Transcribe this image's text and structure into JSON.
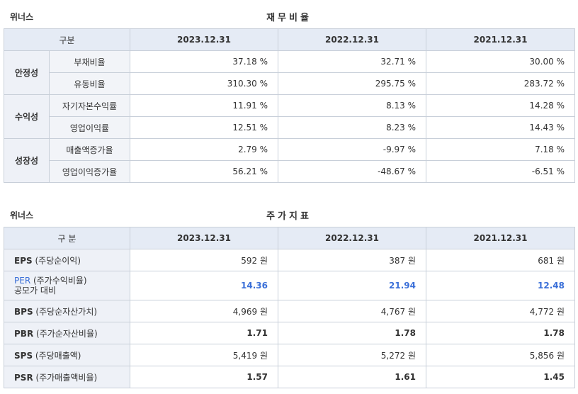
{
  "section1": {
    "company": "위너스",
    "title": "재무비율",
    "header": {
      "category": "구분",
      "years": [
        "2023.12.31",
        "2022.12.31",
        "2021.12.31"
      ]
    },
    "groups": [
      {
        "name": "안정성",
        "rows": [
          {
            "label": "부채비율",
            "values": [
              "37.18 %",
              "32.71 %",
              "30.00 %"
            ]
          },
          {
            "label": "유동비율",
            "values": [
              "310.30 %",
              "295.75 %",
              "283.72 %"
            ]
          }
        ]
      },
      {
        "name": "수익성",
        "rows": [
          {
            "label": "자기자본수익률",
            "values": [
              "11.91 %",
              "8.13 %",
              "14.28 %"
            ]
          },
          {
            "label": "영업이익률",
            "values": [
              "12.51 %",
              "8.23 %",
              "14.43 %"
            ]
          }
        ]
      },
      {
        "name": "성장성",
        "rows": [
          {
            "label": "매출액증가율",
            "values": [
              "2.79 %",
              "-9.97 %",
              "7.18 %"
            ]
          },
          {
            "label": "영업이익증가율",
            "values": [
              "56.21 %",
              "-48.67 %",
              "-6.51 %"
            ]
          }
        ]
      }
    ]
  },
  "section2": {
    "company": "위너스",
    "title": "주가지표",
    "header": {
      "category": "구 분",
      "years": [
        "2023.12.31",
        "2022.12.31",
        "2021.12.31"
      ]
    },
    "rows": [
      {
        "code": "EPS",
        "desc": "(주당순이익)",
        "values": [
          "592 원",
          "387 원",
          "681 원"
        ]
      },
      {
        "code": "PER",
        "desc": "(주가수익비율)",
        "desc2": "공모가 대비",
        "values": [
          "14.36",
          "21.94",
          "12.48"
        ]
      },
      {
        "code": "BPS",
        "desc": "(주당순자산가치)",
        "values": [
          "4,969 원",
          "4,767 원",
          "4,772 원"
        ]
      },
      {
        "code": "PBR",
        "desc": "(주가순자산비율)",
        "values": [
          "1.71",
          "1.78",
          "1.78"
        ]
      },
      {
        "code": "SPS",
        "desc": "(주당매출액)",
        "values": [
          "5,419 원",
          "5,272 원",
          "5,856 원"
        ]
      },
      {
        "code": "PSR",
        "desc": "(주가매출액비율)",
        "values": [
          "1.57",
          "1.61",
          "1.45"
        ]
      }
    ]
  }
}
